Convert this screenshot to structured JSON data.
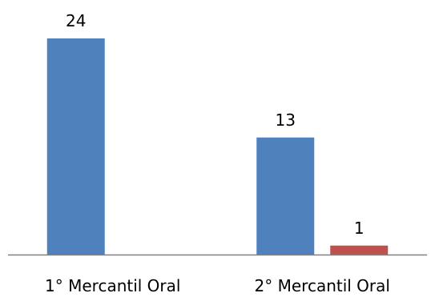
{
  "chart_data": {
    "type": "bar",
    "categories": [
      "1° Mercantil Oral",
      "2° Mercantil Oral"
    ],
    "series": [
      {
        "values": [
          24,
          13
        ],
        "color": "#4F81BD"
      },
      {
        "values": [
          null,
          1
        ],
        "color": "#C0504D"
      }
    ],
    "ylim": [
      0,
      26
    ],
    "grid": false,
    "legend": "none",
    "axis_color": "#808080"
  }
}
